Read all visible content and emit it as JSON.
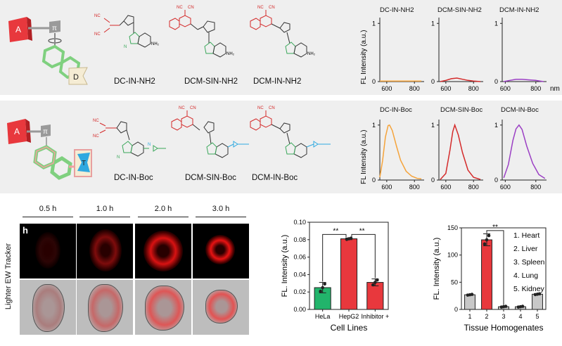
{
  "top_panel": {
    "scheme": {
      "a_label": "A",
      "pi_label": "π",
      "d_label": "D"
    },
    "compounds": [
      "DC-IN-NH2",
      "DCM-SIN-NH2",
      "DCM-IN-NH2"
    ],
    "charts": {
      "titles": [
        "DC-IN-NH2",
        "DCM-SIN-NH2",
        "DCM-IN-NH2"
      ],
      "ylabel": "FL Intensity (a.u.)",
      "xunit": "nm",
      "xticks": [
        "600",
        "800"
      ],
      "yticks": [
        "0",
        "1"
      ]
    }
  },
  "mid_panel": {
    "scheme": {
      "a_label": "A",
      "pi_label": "π",
      "t_label": "T"
    },
    "compounds": [
      "DC-IN-Boc",
      "DCM-SIN-Boc",
      "DCM-IN-Boc"
    ],
    "charts": {
      "titles": [
        "DC-IN-Boc",
        "DCM-SIN-Boc",
        "DCM-IN-Boc"
      ],
      "ylabel": "FL Intensity (a.u.)",
      "xticks": [
        "600",
        "800"
      ],
      "yticks": [
        "0",
        "1"
      ]
    }
  },
  "imaging": {
    "panel_label": "h",
    "side_label": "Lighter EW Tracker",
    "times": [
      "0.5 h",
      "1.0 h",
      "2.0 h",
      "3.0 h"
    ]
  },
  "colors": {
    "orange": "#f5a33a",
    "red": "#d42a2a",
    "purple": "#9b3fc4",
    "green_bar": "#22b46b",
    "red_bar": "#e8383d",
    "grey_bar": "#c8c8c8",
    "acceptor": "#e8383d",
    "linker": "#7fd07f",
    "target": "#2fa9e0"
  },
  "chart_data": [
    {
      "type": "line",
      "title": "DC-IN-NH2",
      "ylabel": "FL Intensity (a.u.)",
      "xlim": [
        550,
        870
      ],
      "ylim": [
        0,
        1.1
      ],
      "series": [
        {
          "x": [
            550,
            600,
            650,
            700,
            750,
            800,
            850
          ],
          "y": [
            0.01,
            0.01,
            0.01,
            0.01,
            0.01,
            0.01,
            0.01
          ]
        }
      ]
    },
    {
      "type": "line",
      "title": "DCM-SIN-NH2",
      "xlim": [
        550,
        870
      ],
      "ylim": [
        0,
        1.1
      ],
      "series": [
        {
          "x": [
            560,
            600,
            640,
            680,
            720,
            760,
            800,
            850
          ],
          "y": [
            0.0,
            0.02,
            0.05,
            0.06,
            0.04,
            0.02,
            0.01,
            0.0
          ]
        }
      ]
    },
    {
      "type": "line",
      "title": "DCM-IN-NH2",
      "xlim": [
        580,
        870
      ],
      "ylim": [
        0,
        1.1
      ],
      "series": [
        {
          "x": [
            590,
            630,
            670,
            710,
            750,
            800,
            850
          ],
          "y": [
            0.0,
            0.02,
            0.04,
            0.04,
            0.03,
            0.02,
            0.0
          ]
        }
      ]
    },
    {
      "type": "line",
      "title": "DC-IN-Boc",
      "ylabel": "FL Intensity (a.u.)",
      "xlim": [
        550,
        870
      ],
      "ylim": [
        0,
        1.1
      ],
      "series": [
        {
          "x": [
            550,
            570,
            590,
            610,
            620,
            640,
            670,
            700,
            740,
            780,
            820,
            850
          ],
          "y": [
            0.05,
            0.35,
            0.78,
            0.99,
            1.0,
            0.9,
            0.62,
            0.36,
            0.16,
            0.07,
            0.03,
            0.02
          ]
        }
      ]
    },
    {
      "type": "line",
      "title": "DCM-SIN-Boc",
      "xlim": [
        550,
        870
      ],
      "ylim": [
        0,
        1.1
      ],
      "series": [
        {
          "x": [
            560,
            600,
            630,
            650,
            665,
            690,
            720,
            760,
            800,
            850
          ],
          "y": [
            0.01,
            0.12,
            0.55,
            0.88,
            1.0,
            0.82,
            0.5,
            0.18,
            0.05,
            0.01
          ]
        }
      ]
    },
    {
      "type": "line",
      "title": "DCM-IN-Boc",
      "xlim": [
        580,
        870
      ],
      "ylim": [
        0,
        1.1
      ],
      "series": [
        {
          "x": [
            590,
            620,
            650,
            670,
            690,
            710,
            740,
            780,
            820,
            860
          ],
          "y": [
            0.04,
            0.28,
            0.72,
            0.93,
            1.0,
            0.92,
            0.62,
            0.3,
            0.1,
            0.03
          ]
        }
      ]
    },
    {
      "type": "bar",
      "categories": [
        "HeLa",
        "HepG2",
        "Inhibitor +"
      ],
      "values": [
        0.025,
        0.081,
        0.031
      ],
      "errors": [
        0.006,
        0.001,
        0.004
      ],
      "ylabel": "FL. Intensity (a.u.)",
      "xlabel": "Cell Lines",
      "ylim": [
        0,
        0.1
      ],
      "yticks": [
        "0.00",
        "0.02",
        "0.04",
        "0.06",
        "0.08",
        "0.10"
      ],
      "sig": [
        "**",
        "**"
      ]
    },
    {
      "type": "bar",
      "categories": [
        "1",
        "2",
        "3",
        "4",
        "5"
      ],
      "values": [
        27,
        128,
        5,
        5,
        28
      ],
      "errors": [
        1,
        11,
        1,
        1,
        1
      ],
      "ylabel": "FL. Intensity (a.u.)",
      "xlabel": "Tissue Homogenates",
      "ylim": [
        0,
        150
      ],
      "yticks": [
        "0",
        "50",
        "100",
        "150"
      ],
      "sig": [
        "**"
      ],
      "legend": [
        "1. Heart",
        "2. Liver",
        "3. Spleen",
        "4. Lung",
        "5. Kidney"
      ]
    }
  ]
}
